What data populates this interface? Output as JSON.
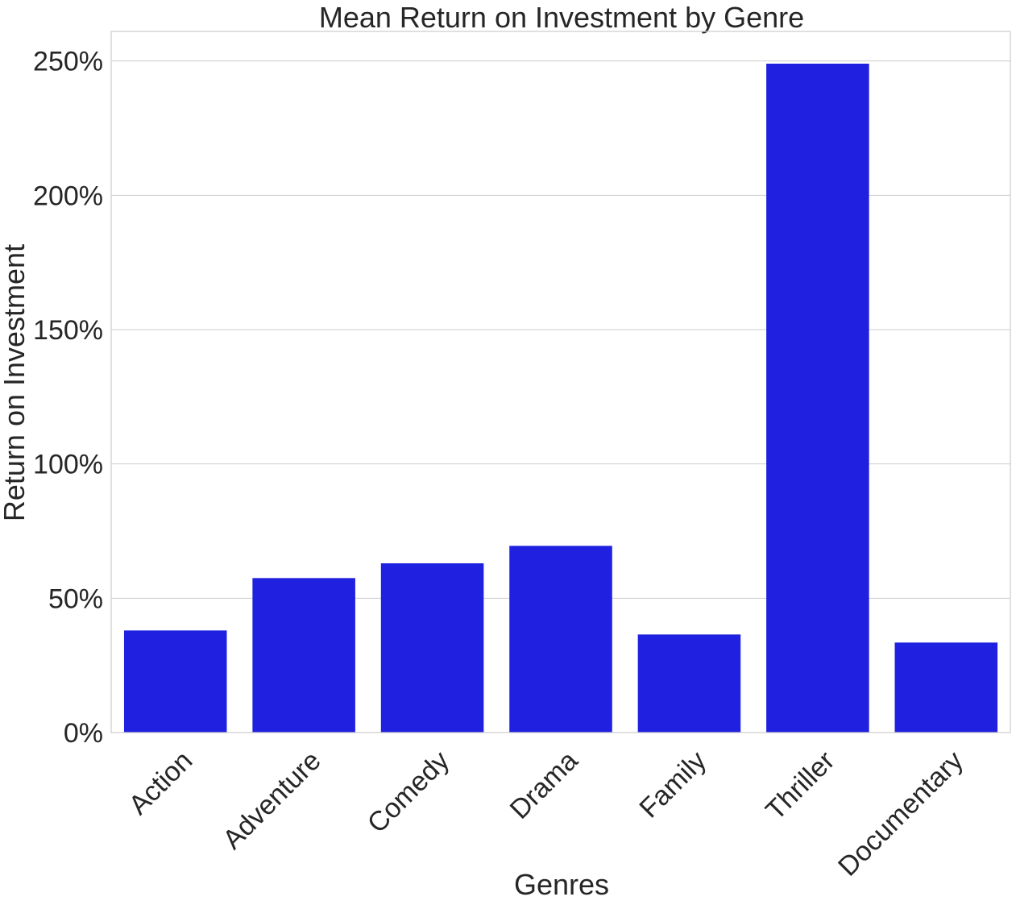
{
  "chart_data": {
    "type": "bar",
    "title": "Mean Return on Investment by Genre",
    "xlabel": "Genres",
    "ylabel": "Return on Investment",
    "categories": [
      "Action",
      "Adventure",
      "Comedy",
      "Drama",
      "Family",
      "Thriller",
      "Documentary"
    ],
    "values": [
      38,
      57.5,
      63,
      69.5,
      36.5,
      249,
      33.5
    ],
    "value_unit": "percent",
    "ylim": [
      0,
      261
    ],
    "yticks": [
      0,
      50,
      100,
      150,
      200,
      250
    ],
    "ytick_labels": [
      "0%",
      "50%",
      "100%",
      "150%",
      "200%",
      "250%"
    ],
    "bar_color": "#2020e0",
    "grid": "horizontal",
    "legend": "none"
  }
}
